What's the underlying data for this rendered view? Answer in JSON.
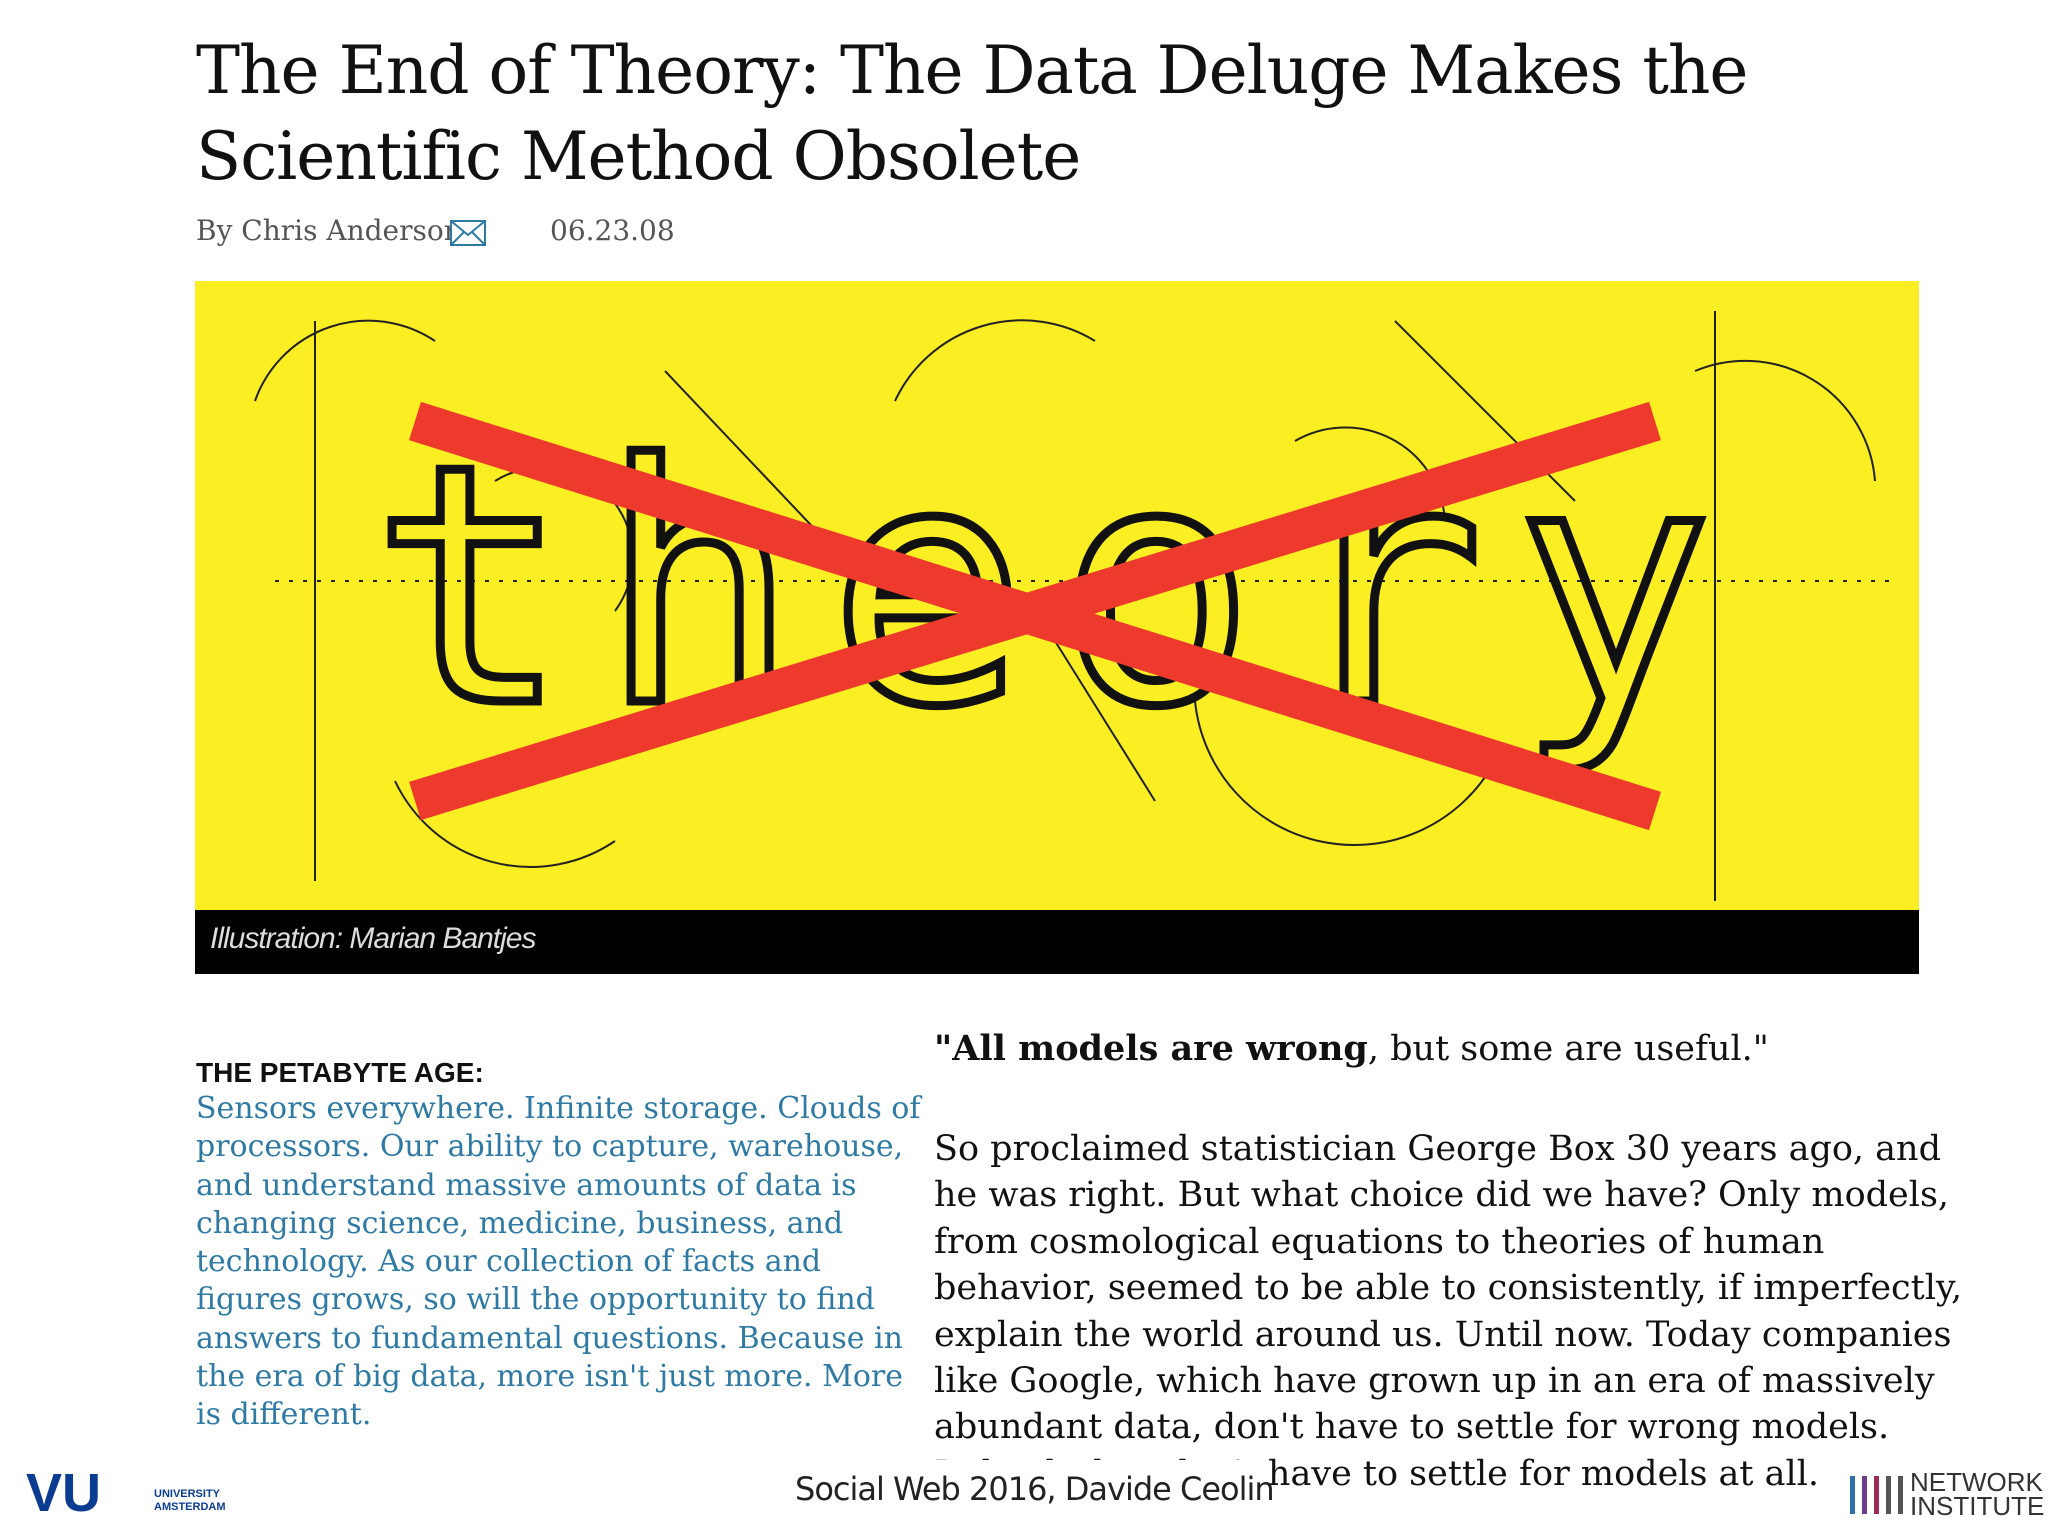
{
  "header": {
    "title": "The End of Theory: The Data Deluge Makes the Scientific Method Obsolete"
  },
  "byline": {
    "author": "By Chris Anderson",
    "date": "06.23.08"
  },
  "illustration": {
    "word": "theory",
    "caption": "Illustration: Marian Bantjes"
  },
  "sidebar": {
    "heading": "THE PETABYTE AGE:",
    "lines": [
      "Sensors everywhere. Infinite storage. Clouds of",
      "processors. Our ability to capture, warehouse,",
      "and understand massive amounts of data is",
      "changing science, medicine, business, and",
      "technology. As our collection of facts and",
      "figures grows, so will the opportunity to find",
      "answers to fundamental questions. Because in",
      "the era of big data, more isn't just more. More",
      "is different."
    ]
  },
  "article": {
    "quote_bold": "\"All models are wrong",
    "quote_rest": ", but some are useful.\"",
    "lines": [
      "So proclaimed statistician George Box 30 years ago, and",
      "he was right. But what choice did we have? Only models,",
      "from cosmological equations to theories of human",
      "behavior, seemed to be able to consistently, if imperfectly,",
      "explain the world around us. Until now. Today companies",
      "like Google, which have grown up in an era of massively",
      "abundant data, don't have to settle for wrong models.",
      "Indeed, they don't have to settle for models at all."
    ]
  },
  "footer": {
    "text": "Social Web 2016, Davide Ceolin",
    "logo": "VU",
    "logo_sub": "UNIVERSITY AMSTERDAM",
    "network": "NETWORK INSTITUTE"
  }
}
